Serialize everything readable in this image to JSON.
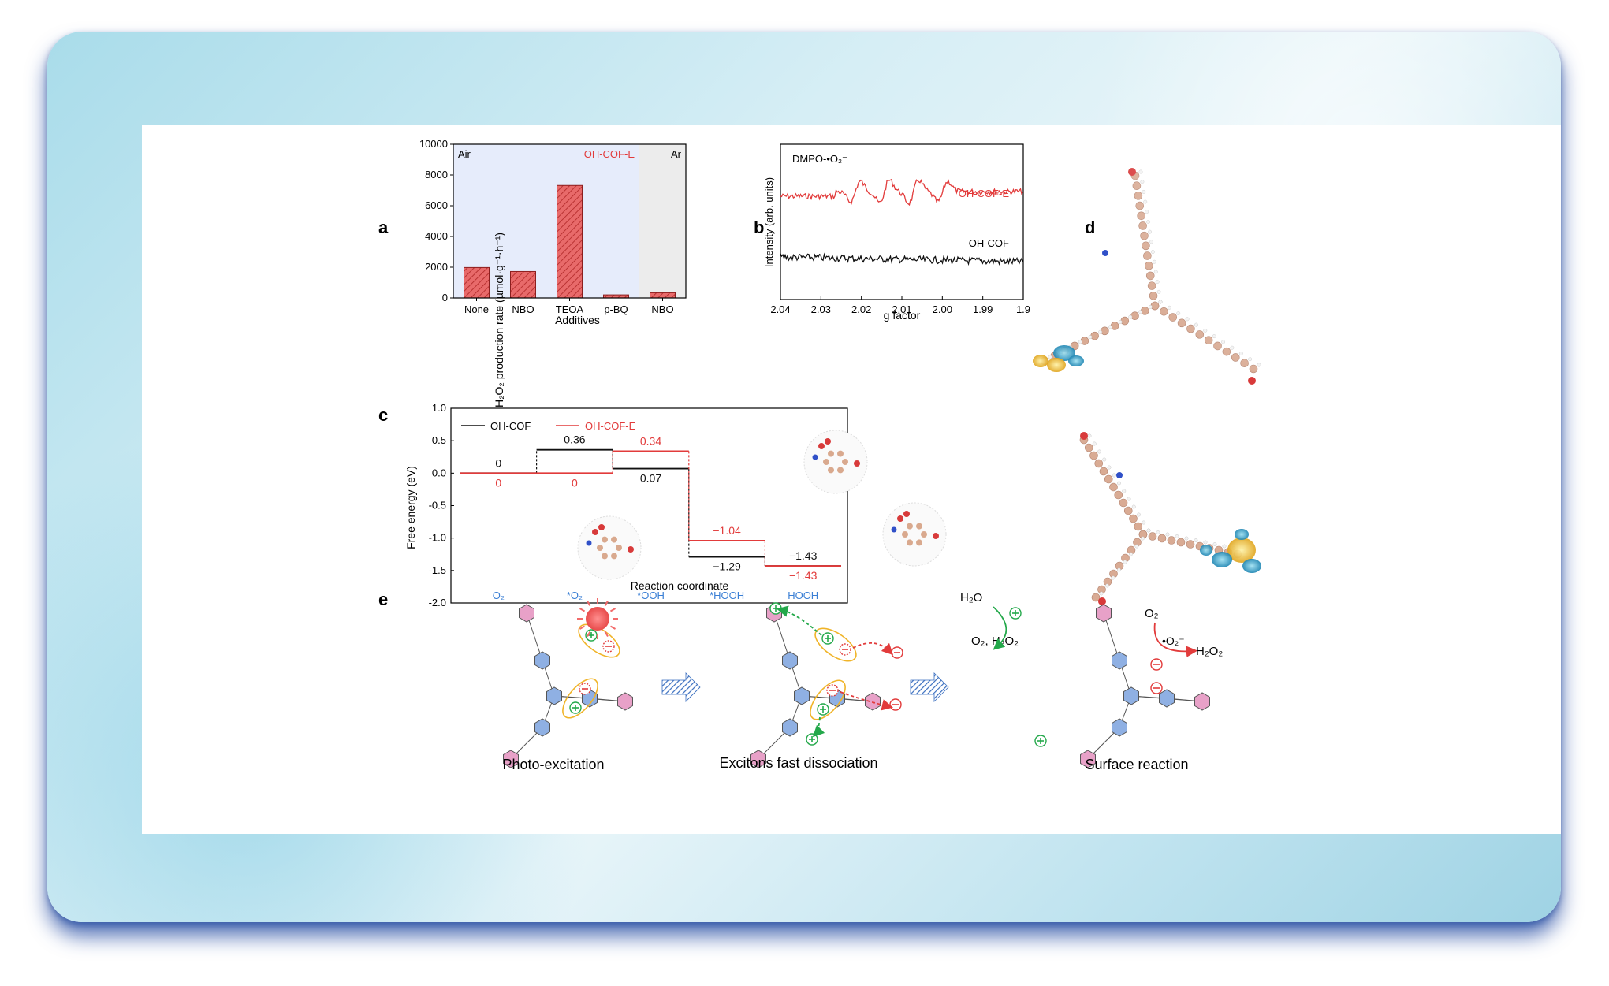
{
  "panel_labels": {
    "a": "a",
    "b": "b",
    "c": "c",
    "d": "d",
    "e": "e"
  },
  "chart_data": [
    {
      "id": "a",
      "type": "bar",
      "categories": [
        "None",
        "NBO",
        "TEOA",
        "p-BQ",
        "NBO"
      ],
      "values": [
        1980,
        1720,
        7320,
        200,
        340
      ],
      "ylim": [
        0,
        10000
      ],
      "yticks": [
        "0",
        "2000",
        "4000",
        "6000",
        "8000",
        "10000"
      ],
      "xlabel": "Additives",
      "ylabel": "H₂O₂ production rate (µmol·g⁻¹·h⁻¹)",
      "region_labels": [
        "Air",
        "OH-COF-E",
        "Ar"
      ],
      "colors": {
        "bar": "#e05a5a",
        "air_region": "#e6ecfb",
        "ar_region": "#ececec",
        "label_red": "#e23b3b"
      }
    },
    {
      "id": "b",
      "type": "line",
      "xlim": [
        2.04,
        1.9
      ],
      "xticks": [
        "2.04",
        "2.03",
        "2.02",
        "2.01",
        "2.00",
        "1.99",
        "1.9"
      ],
      "xlabel": "g factor",
      "ylabel": "Intensity (arb. units)",
      "annotation": "DMPO-•O₂⁻",
      "series": [
        {
          "name": "OH-COF-E",
          "color": "#e23b3b"
        },
        {
          "name": "OH-COF",
          "color": "#111111"
        }
      ]
    },
    {
      "id": "c",
      "type": "line",
      "ylim": [
        -2.0,
        1.0
      ],
      "yticks": [
        "1.0",
        "0.5",
        "0.0",
        "-0.5",
        "-1.0",
        "-1.5",
        "-2.0"
      ],
      "xlabel": "Reaction coordinate",
      "ylabel": "Free energy (eV)",
      "categories": [
        "O₂",
        "*O₂",
        "*OOH",
        "*HOOH",
        "HOOH"
      ],
      "series": [
        {
          "name": "OH-COF",
          "color": "#111111",
          "values": [
            0,
            0.36,
            0.07,
            -1.29,
            -1.43
          ],
          "labels": [
            "0",
            "0.36",
            "0.07",
            "−1.29",
            "−1.43"
          ]
        },
        {
          "name": "OH-COF-E",
          "color": "#e23b3b",
          "values": [
            0,
            0,
            0.34,
            -1.04,
            -1.43
          ],
          "labels": [
            "0",
            "0",
            "0.34",
            "−1.04",
            "−1.43"
          ]
        }
      ],
      "category_color": "#3a7fd5"
    }
  ],
  "panel_e": {
    "captions": [
      "Photo-excitation",
      "Excitons fast dissociation",
      "Surface reaction"
    ],
    "reaction_labels": {
      "h2o": "H₂O",
      "o2_h2o2": "O₂, H₂O₂",
      "o2": "O₂",
      "superoxide": "•O₂⁻",
      "h2o2": "H₂O₂"
    },
    "colors": {
      "hole": "#23a84a",
      "electron": "#e23b3b",
      "ellipse": "#f0b429",
      "sun": "#f26a6a",
      "ring_blue": "#8fb0e3",
      "ring_pink": "#e8a1c8"
    }
  }
}
